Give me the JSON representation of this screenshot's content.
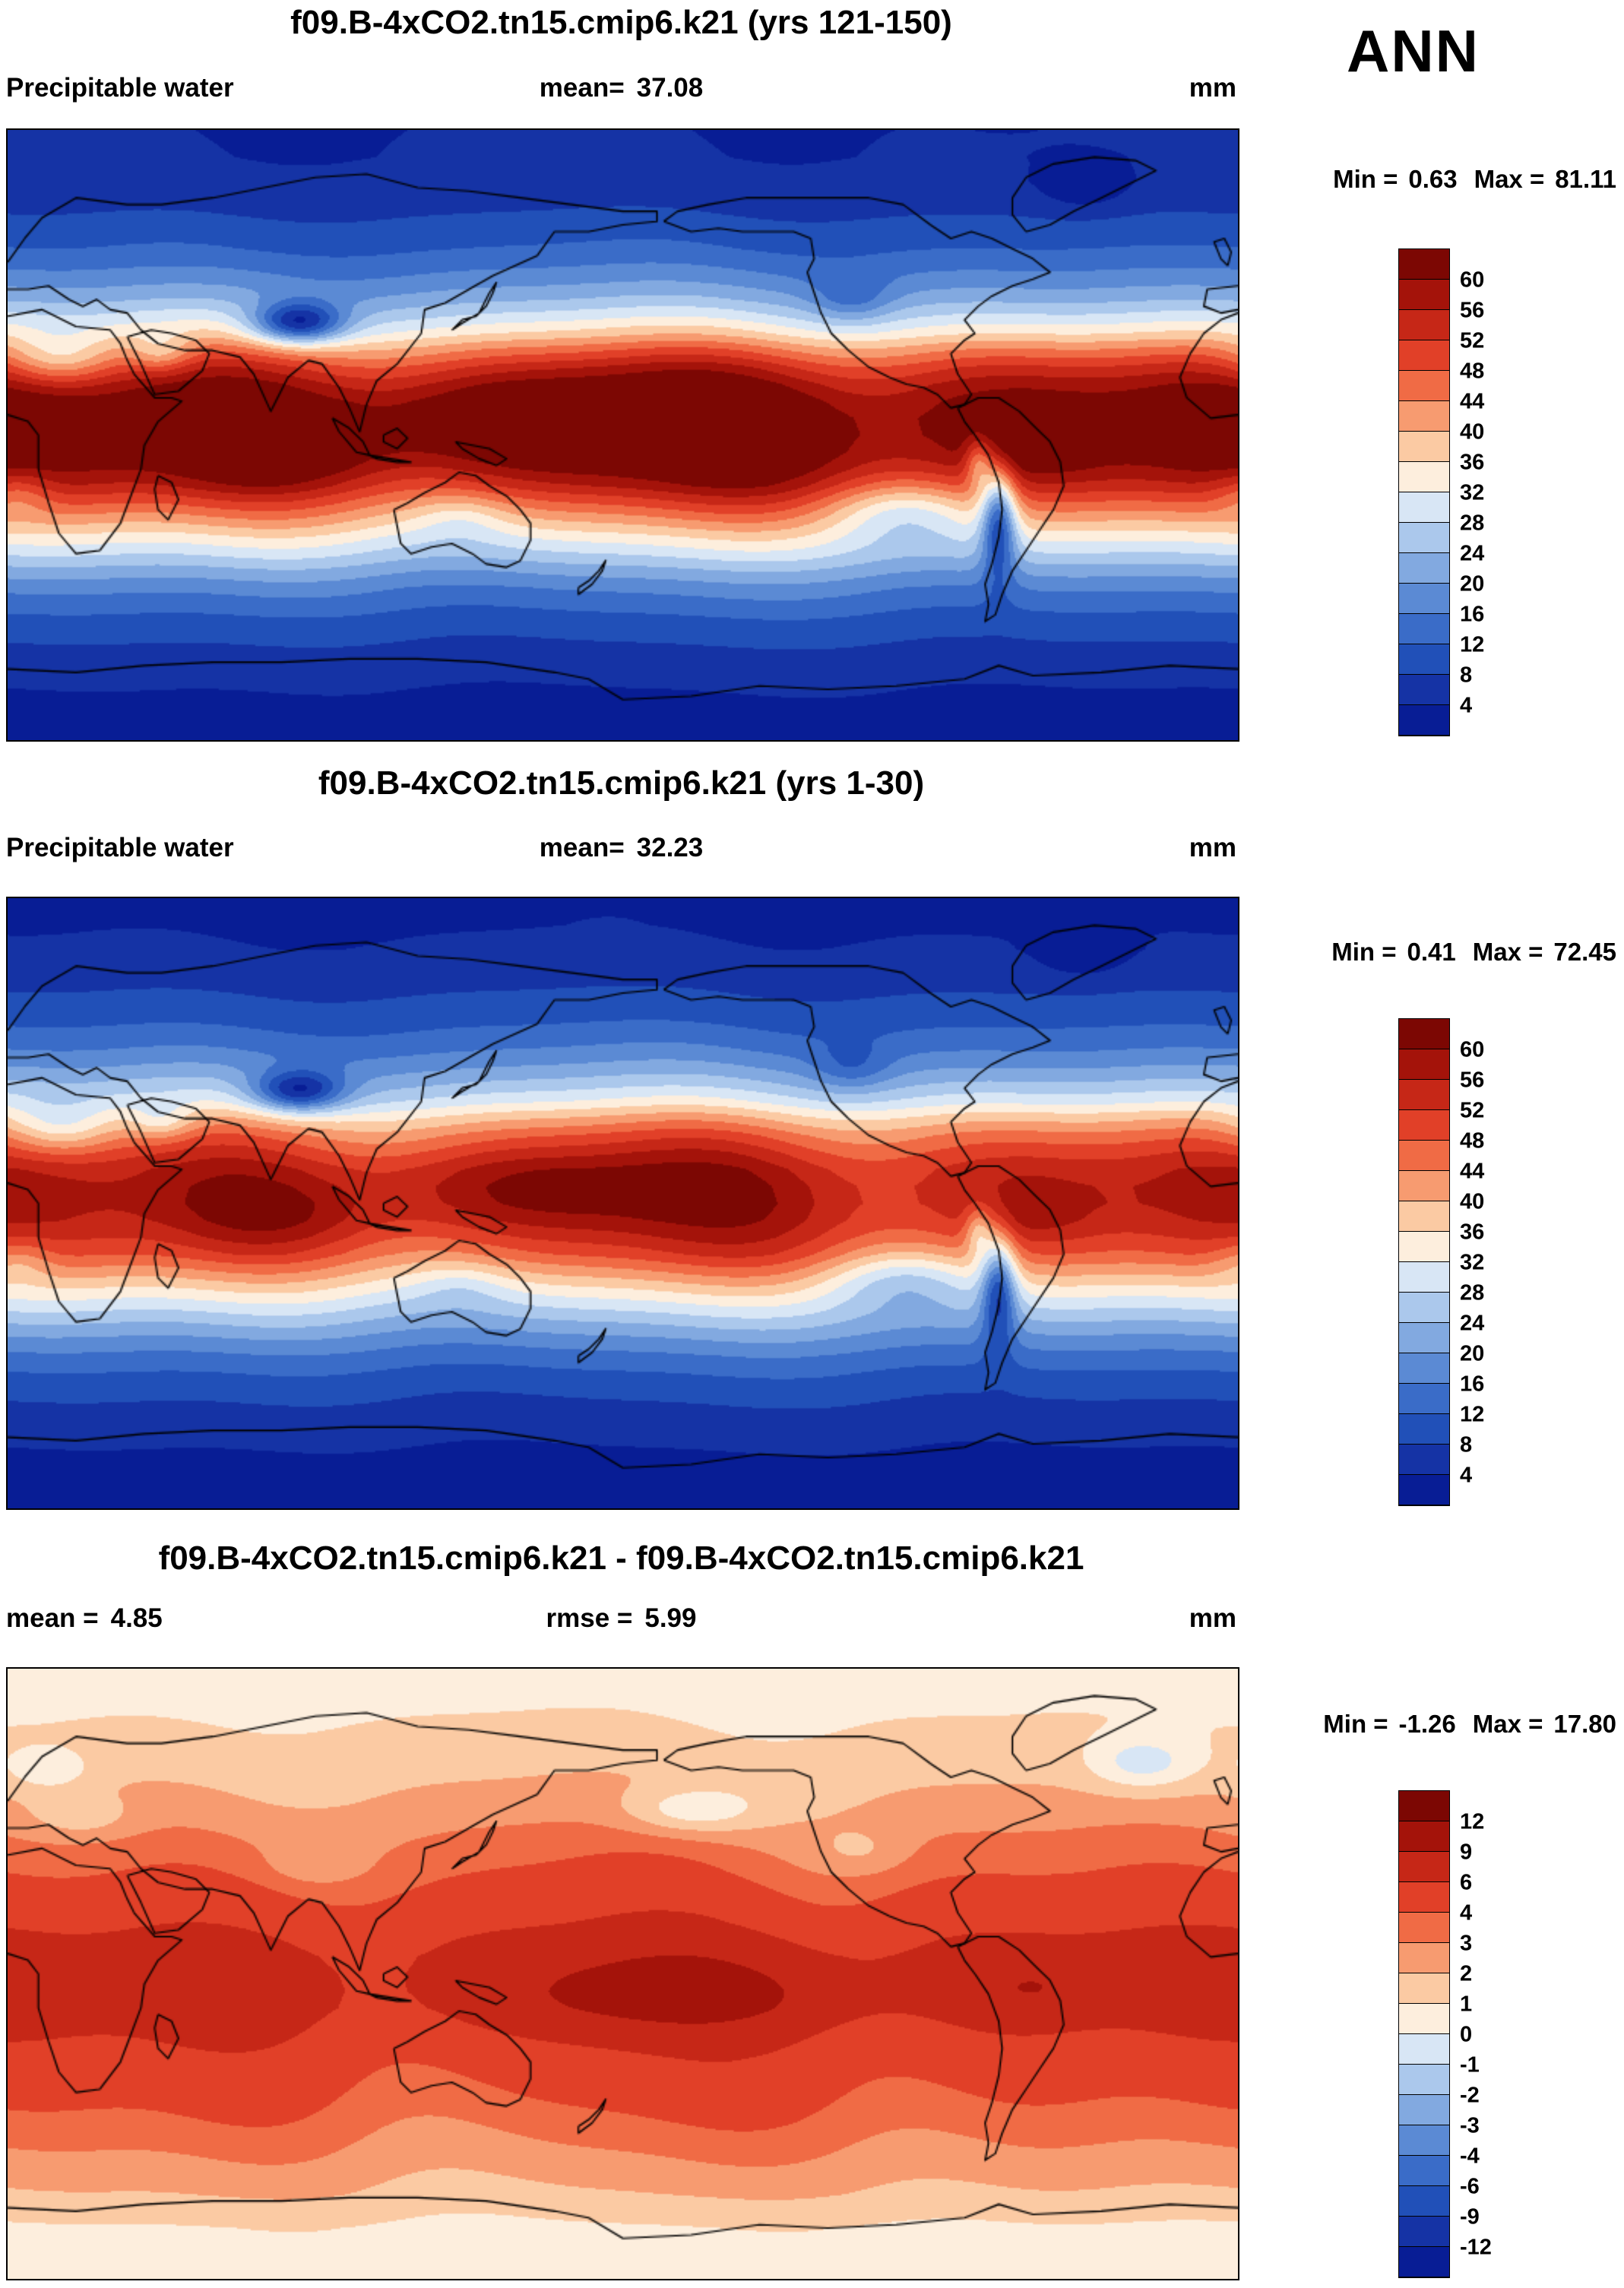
{
  "header": {
    "season": "ANN"
  },
  "palette": [
    "#081d95",
    "#1533a5",
    "#2150b8",
    "#3a6cc8",
    "#5b8ad4",
    "#82a9e0",
    "#abc8ec",
    "#d8e6f5",
    "#fdeedd",
    "#fbcaa3",
    "#f79b70",
    "#f06b45",
    "#e14028",
    "#c62717",
    "#a4130a",
    "#7c0703"
  ],
  "chart_data": [
    {
      "type": "contour-map",
      "title": "f09.B-4xCO2.tn15.cmip6.k21 (yrs 121-150)",
      "variable": "Precipitable water",
      "units": "mm",
      "stats": {
        "mean_label": "mean=",
        "mean": "37.08",
        "min_label": "Min =",
        "min": "0.63",
        "max_label": "Max =",
        "max": "81.11"
      },
      "colorbar": {
        "levels": [
          60,
          56,
          52,
          48,
          44,
          40,
          36,
          32,
          28,
          24,
          20,
          16,
          12,
          8,
          4
        ]
      },
      "projection": {
        "lon_range": [
          0,
          360
        ],
        "lat_range": [
          -90,
          90
        ]
      },
      "field": {
        "zonal": [
          [
            90,
            4
          ],
          [
            82,
            4.2
          ],
          [
            75,
            5
          ],
          [
            70,
            6.5
          ],
          [
            65,
            8
          ],
          [
            60,
            10
          ],
          [
            55,
            12
          ],
          [
            50,
            15
          ],
          [
            45,
            18.5
          ],
          [
            40,
            23
          ],
          [
            35,
            29
          ],
          [
            30,
            36
          ],
          [
            25,
            45
          ],
          [
            20,
            53
          ],
          [
            15,
            59
          ],
          [
            10,
            63
          ],
          [
            5,
            65
          ],
          [
            0,
            65
          ],
          [
            -5,
            63.5
          ],
          [
            -10,
            60
          ],
          [
            -15,
            55
          ],
          [
            -20,
            48
          ],
          [
            -25,
            41
          ],
          [
            -30,
            34
          ],
          [
            -35,
            28
          ],
          [
            -40,
            22
          ],
          [
            -45,
            17
          ],
          [
            -50,
            13.5
          ],
          [
            -55,
            10.5
          ],
          [
            -60,
            8.5
          ],
          [
            -65,
            6.5
          ],
          [
            -70,
            5
          ],
          [
            -75,
            4
          ],
          [
            -80,
            3.2
          ],
          [
            -90,
            2.6
          ]
        ],
        "waves": [
          [
            0.055,
            2,
            0.8,
            0.015
          ],
          [
            0.045,
            3,
            4.0,
            0.02
          ],
          [
            0.03,
            5,
            1.5,
            0.03
          ]
        ],
        "anomalies": [
          [
            85,
            33,
            -26,
            13,
            6
          ],
          [
            15,
            22,
            -12,
            16,
            8
          ],
          [
            45,
            24,
            -9,
            9,
            6
          ],
          [
            290,
            -24,
            -26,
            5,
            16
          ],
          [
            284,
            -8,
            -14,
            4,
            8
          ],
          [
            262,
            -22,
            -10,
            22,
            9
          ],
          [
            3,
            -17,
            -7,
            10,
            7
          ],
          [
            150,
            4,
            7,
            45,
            12
          ],
          [
            80,
            -4,
            5,
            28,
            10
          ],
          [
            247,
            40,
            -7,
            11,
            7
          ],
          [
            133,
            -24,
            -5,
            13,
            7
          ],
          [
            315,
            73,
            -5,
            13,
            7
          ],
          [
            300,
            -3,
            5,
            15,
            8
          ]
        ]
      }
    },
    {
      "type": "contour-map",
      "title": "f09.B-4xCO2.tn15.cmip6.k21 (yrs 1-30)",
      "variable": "Precipitable water",
      "units": "mm",
      "stats": {
        "mean_label": "mean=",
        "mean": "32.23",
        "min_label": "Min =",
        "min": "0.41",
        "max_label": "Max =",
        "max": "72.45"
      },
      "colorbar": {
        "levels": [
          60,
          56,
          52,
          48,
          44,
          40,
          36,
          32,
          28,
          24,
          20,
          16,
          12,
          8,
          4
        ]
      },
      "projection": {
        "lon_range": [
          0,
          360
        ],
        "lat_range": [
          -90,
          90
        ]
      },
      "field": {
        "zonal": [
          [
            90,
            3.5
          ],
          [
            82,
            3.7
          ],
          [
            75,
            4.4
          ],
          [
            70,
            5.7
          ],
          [
            65,
            7
          ],
          [
            60,
            8.7
          ],
          [
            55,
            10.4
          ],
          [
            50,
            13
          ],
          [
            45,
            16
          ],
          [
            40,
            20
          ],
          [
            35,
            25
          ],
          [
            30,
            31
          ],
          [
            25,
            39
          ],
          [
            20,
            46
          ],
          [
            15,
            51
          ],
          [
            10,
            55
          ],
          [
            5,
            56.5
          ],
          [
            0,
            56.5
          ],
          [
            -5,
            55
          ],
          [
            -10,
            52
          ],
          [
            -15,
            48
          ],
          [
            -20,
            42
          ],
          [
            -25,
            35.5
          ],
          [
            -30,
            29.5
          ],
          [
            -35,
            24
          ],
          [
            -40,
            19
          ],
          [
            -45,
            14.8
          ],
          [
            -50,
            11.7
          ],
          [
            -55,
            9.1
          ],
          [
            -60,
            7.4
          ],
          [
            -65,
            5.7
          ],
          [
            -70,
            4.4
          ],
          [
            -75,
            3.5
          ],
          [
            -80,
            2.8
          ],
          [
            -90,
            2.3
          ]
        ],
        "waves": [
          [
            0.055,
            2,
            0.8,
            0.015
          ],
          [
            0.045,
            3,
            4.0,
            0.02
          ],
          [
            0.03,
            5,
            1.5,
            0.03
          ]
        ],
        "anomalies": [
          [
            85,
            33,
            -22,
            13,
            6
          ],
          [
            15,
            22,
            -10,
            16,
            8
          ],
          [
            45,
            24,
            -8,
            9,
            6
          ],
          [
            290,
            -24,
            -23,
            5,
            16
          ],
          [
            284,
            -8,
            -12,
            4,
            8
          ],
          [
            262,
            -22,
            -9,
            22,
            9
          ],
          [
            3,
            -17,
            -6,
            10,
            7
          ],
          [
            150,
            4,
            6,
            45,
            12
          ],
          [
            80,
            -4,
            4,
            28,
            10
          ],
          [
            247,
            40,
            -6,
            11,
            7
          ],
          [
            133,
            -24,
            -4,
            13,
            7
          ],
          [
            315,
            73,
            -4,
            13,
            7
          ],
          [
            300,
            -3,
            4,
            15,
            8
          ]
        ]
      }
    },
    {
      "type": "contour-map",
      "title": "f09.B-4xCO2.tn15.cmip6.k21 - f09.B-4xCO2.tn15.cmip6.k21",
      "variable": "",
      "units": "mm",
      "stats": {
        "mean_label": "mean =",
        "mean": "4.85",
        "rmse_label": "rmse =",
        "rmse": "5.99",
        "min_label": "Min =",
        "min": "-1.26",
        "max_label": "Max =",
        "max": "17.80"
      },
      "colorbar": {
        "levels": [
          12,
          9,
          6,
          4,
          3,
          2,
          1,
          0,
          -1,
          -2,
          -3,
          -4,
          -6,
          -9,
          -12
        ]
      },
      "projection": {
        "lon_range": [
          0,
          360
        ],
        "lat_range": [
          -90,
          90
        ]
      },
      "field": {
        "zonal": [
          [
            90,
            0.6
          ],
          [
            80,
            0.8
          ],
          [
            70,
            1.2
          ],
          [
            60,
            1.7
          ],
          [
            50,
            2.3
          ],
          [
            40,
            3.1
          ],
          [
            35,
            3.5
          ],
          [
            30,
            3.9
          ],
          [
            25,
            4.4
          ],
          [
            20,
            4.9
          ],
          [
            15,
            5.5
          ],
          [
            10,
            6.3
          ],
          [
            5,
            6.9
          ],
          [
            0,
            7.1
          ],
          [
            -5,
            7.1
          ],
          [
            -10,
            6.9
          ],
          [
            -15,
            6.3
          ],
          [
            -20,
            5.7
          ],
          [
            -25,
            5.1
          ],
          [
            -30,
            4.7
          ],
          [
            -35,
            4.3
          ],
          [
            -40,
            3.9
          ],
          [
            -45,
            3.5
          ],
          [
            -50,
            3.1
          ],
          [
            -55,
            2.7
          ],
          [
            -60,
            2.3
          ],
          [
            -65,
            1.9
          ],
          [
            -70,
            1.3
          ],
          [
            -75,
            0.9
          ],
          [
            -80,
            0.7
          ],
          [
            -90,
            0.5
          ]
        ],
        "waves": [
          [
            0.1,
            2,
            1.2,
            0.02
          ],
          [
            0.08,
            3,
            4.5,
            0.015
          ],
          [
            0.05,
            5,
            2.2,
            0.03
          ]
        ],
        "anomalies": [
          [
            200,
            48,
            -2.2,
            20,
            7
          ],
          [
            332,
            62,
            -2.2,
            16,
            8
          ],
          [
            12,
            60,
            -1.4,
            12,
            6
          ],
          [
            195,
            -6,
            3.2,
            45,
            10
          ],
          [
            300,
            -4,
            2.0,
            18,
            8
          ],
          [
            22,
            46,
            -1.2,
            15,
            6
          ],
          [
            250,
            36,
            -1.0,
            14,
            7
          ],
          [
            90,
            32,
            -1.0,
            14,
            6
          ]
        ]
      }
    }
  ]
}
